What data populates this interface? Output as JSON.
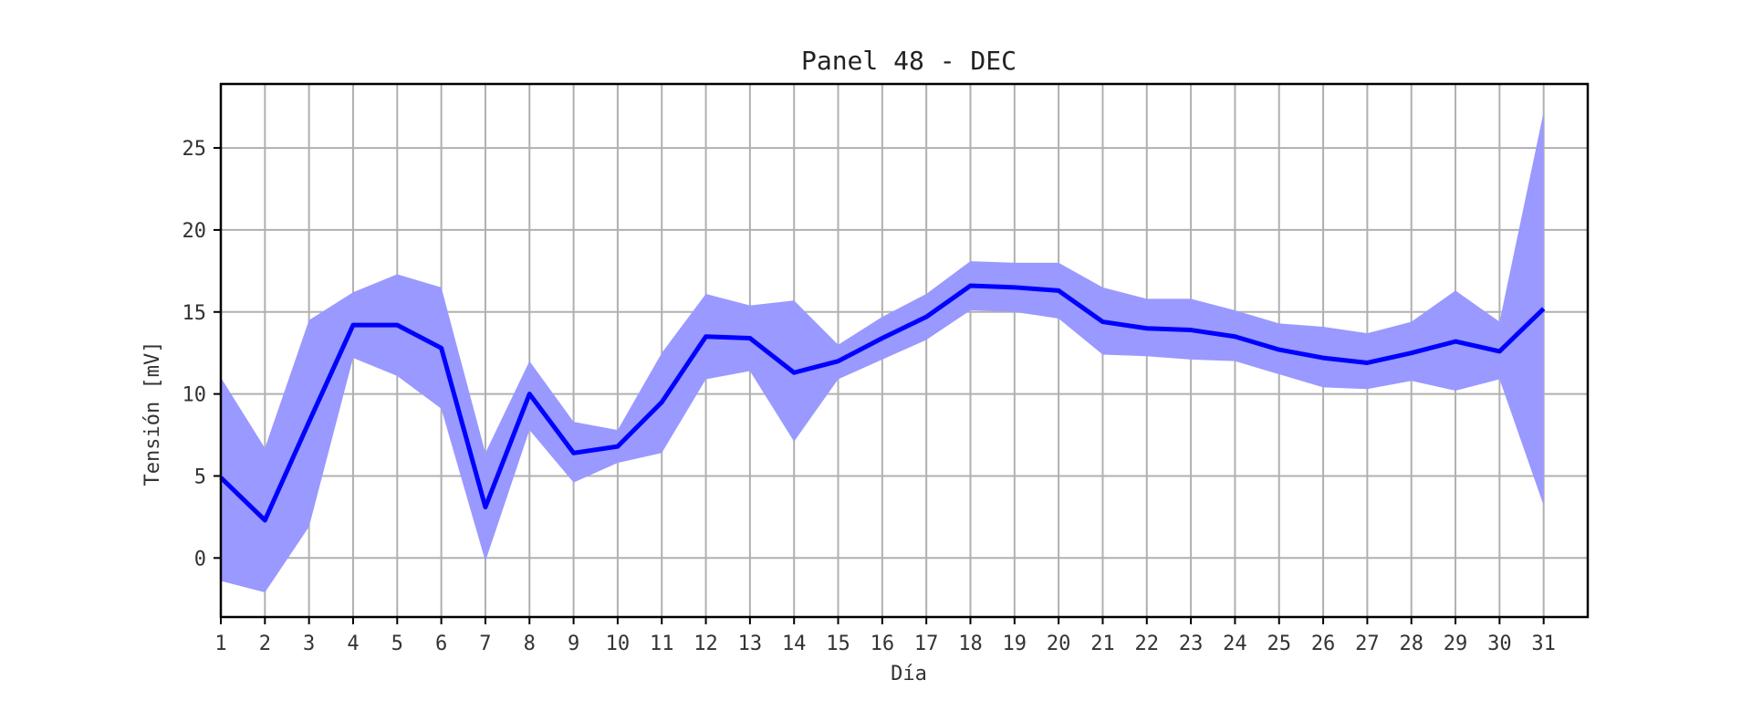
{
  "chart_data": {
    "type": "line",
    "title": "Panel 48 - DEC",
    "xlabel": "Día",
    "ylabel": "Tensión [mV]",
    "x": [
      1,
      2,
      3,
      4,
      5,
      6,
      7,
      8,
      9,
      10,
      11,
      12,
      13,
      14,
      15,
      16,
      17,
      18,
      19,
      20,
      21,
      22,
      23,
      24,
      25,
      26,
      27,
      28,
      29,
      30,
      31
    ],
    "xlim": [
      1,
      32
    ],
    "ylim": [
      -3.6,
      28.9
    ],
    "yticks": [
      0,
      5,
      10,
      15,
      20,
      25
    ],
    "grid": true,
    "series": [
      {
        "values": [
          4.9,
          2.3,
          8.3,
          14.2,
          14.2,
          12.8,
          3.1,
          10.0,
          6.4,
          6.8,
          9.5,
          13.5,
          13.4,
          11.3,
          12.0,
          13.4,
          14.7,
          16.6,
          16.5,
          16.3,
          14.4,
          14.0,
          13.9,
          13.5,
          12.7,
          12.2,
          11.9,
          12.5,
          13.2,
          12.6,
          15.2
        ],
        "upper": [
          11.0,
          6.7,
          14.5,
          16.2,
          17.3,
          16.5,
          6.4,
          12.0,
          8.3,
          7.8,
          12.5,
          16.1,
          15.4,
          15.7,
          13.0,
          14.7,
          16.1,
          18.1,
          18.0,
          18.0,
          16.5,
          15.8,
          15.8,
          15.1,
          14.3,
          14.1,
          13.7,
          14.4,
          16.3,
          14.4,
          27.2
        ],
        "lower": [
          -1.4,
          -2.1,
          1.9,
          12.2,
          11.1,
          9.1,
          -0.2,
          7.8,
          4.6,
          5.8,
          6.4,
          10.9,
          11.4,
          7.1,
          10.9,
          12.1,
          13.3,
          15.1,
          15.0,
          14.6,
          12.4,
          12.3,
          12.1,
          12.0,
          11.2,
          10.4,
          10.3,
          10.8,
          10.2,
          10.9,
          3.2
        ],
        "color": "#0000ff",
        "band_color": "#9999ff"
      }
    ]
  }
}
